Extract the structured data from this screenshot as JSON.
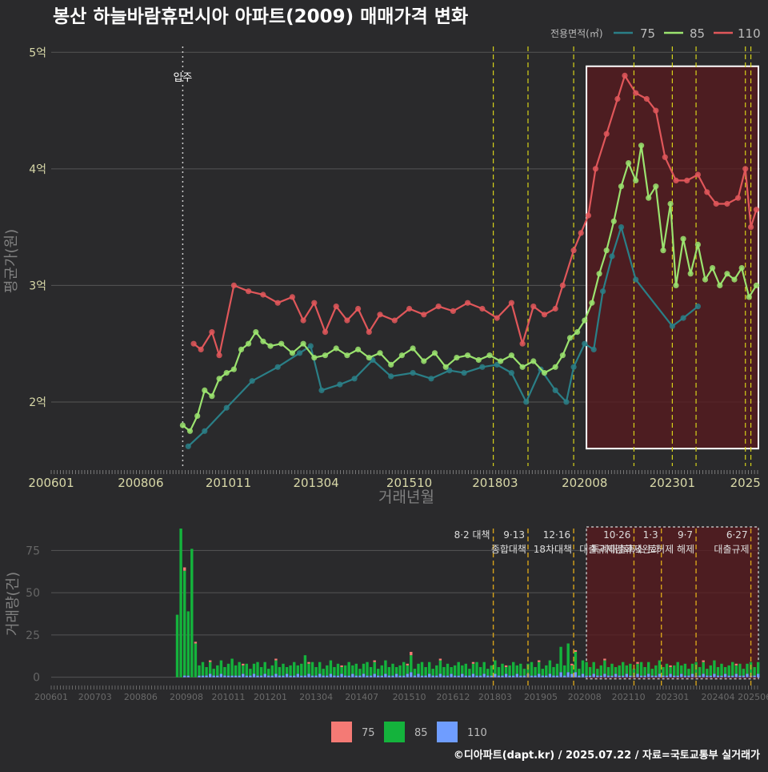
{
  "title": "봉산 하늘바람휴먼시아 아파트(2009) 매매가격 변화",
  "legend_top": {
    "label": "전용면적(㎡)",
    "items": [
      {
        "name": "75",
        "color": "#2a7f87"
      },
      {
        "name": "85",
        "color": "#9be36f"
      },
      {
        "name": "110",
        "color": "#e0575a"
      }
    ]
  },
  "legend_bottom": {
    "items": [
      {
        "name": "75",
        "color": "#f47a75"
      },
      {
        "name": "85",
        "color": "#14b33c"
      },
      {
        "name": "110",
        "color": "#6f9dff"
      }
    ]
  },
  "footer": "©디아파트(dapt.kr) / 2025.07.22 / 자료=국토교통부 실거래가",
  "chart_data": [
    {
      "type": "line",
      "title": "봉산 하늘바람휴먼시아 아파트(2009) 매매가격 변화",
      "xlabel": "거래년월",
      "ylabel": "평균가(원)",
      "ylim": [
        1.45,
        5.05
      ],
      "yticks": [
        {
          "v": 2,
          "label": "2억"
        },
        {
          "v": 3,
          "label": "3억"
        },
        {
          "v": 4,
          "label": "4억"
        },
        {
          "v": 5,
          "label": "5억"
        }
      ],
      "xlim": [
        2006.0,
        2025.4
      ],
      "xticks": [
        {
          "v": 2006.0,
          "label": "200601"
        },
        {
          "v": 2008.45,
          "label": "200806"
        },
        {
          "v": 2010.85,
          "label": "201011"
        },
        {
          "v": 2013.25,
          "label": "201304"
        },
        {
          "v": 2015.8,
          "label": "201510"
        },
        {
          "v": 2018.15,
          "label": "201803"
        },
        {
          "v": 2020.6,
          "label": "202008"
        },
        {
          "v": 2023.0,
          "label": "202301"
        },
        {
          "v": 2025.0,
          "label": "2025"
        }
      ],
      "annotation": {
        "x": 2009.6,
        "label": "입주"
      },
      "event_lines": [
        2018.1,
        2019.05,
        2020.3,
        2021.95,
        2023.0,
        2023.65,
        2025.0,
        2025.15
      ],
      "highlight": {
        "x_from": 2020.65,
        "x_to": 2025.4,
        "y_from": 1.6,
        "y_to": 4.88
      },
      "series": [
        {
          "name": "75",
          "points": [
            [
              2009.75,
              1.62
            ],
            [
              2010.2,
              1.75
            ],
            [
              2010.8,
              1.95
            ],
            [
              2011.5,
              2.18
            ],
            [
              2012.2,
              2.3
            ],
            [
              2012.8,
              2.42
            ],
            [
              2013.1,
              2.48
            ],
            [
              2013.4,
              2.1
            ],
            [
              2013.9,
              2.15
            ],
            [
              2014.3,
              2.2
            ],
            [
              2014.8,
              2.36
            ],
            [
              2015.3,
              2.22
            ],
            [
              2015.9,
              2.25
            ],
            [
              2016.4,
              2.2
            ],
            [
              2016.9,
              2.27
            ],
            [
              2017.3,
              2.25
            ],
            [
              2017.8,
              2.3
            ],
            [
              2018.2,
              2.32
            ],
            [
              2018.6,
              2.25
            ],
            [
              2019.0,
              2.0
            ],
            [
              2019.4,
              2.28
            ],
            [
              2019.8,
              2.1
            ],
            [
              2020.1,
              2.0
            ],
            [
              2020.3,
              2.3
            ],
            [
              2020.6,
              2.5
            ],
            [
              2020.85,
              2.45
            ],
            [
              2021.1,
              2.95
            ],
            [
              2021.35,
              3.25
            ],
            [
              2021.6,
              3.5
            ],
            [
              2022.0,
              3.05
            ],
            [
              2023.0,
              2.65
            ],
            [
              2023.3,
              2.72
            ],
            [
              2023.7,
              2.82
            ]
          ]
        },
        {
          "name": "85",
          "points": [
            [
              2009.6,
              1.8
            ],
            [
              2009.8,
              1.75
            ],
            [
              2010.0,
              1.88
            ],
            [
              2010.2,
              2.1
            ],
            [
              2010.4,
              2.05
            ],
            [
              2010.6,
              2.2
            ],
            [
              2010.8,
              2.25
            ],
            [
              2011.0,
              2.28
            ],
            [
              2011.2,
              2.45
            ],
            [
              2011.4,
              2.5
            ],
            [
              2011.6,
              2.6
            ],
            [
              2011.8,
              2.52
            ],
            [
              2012.0,
              2.48
            ],
            [
              2012.3,
              2.5
            ],
            [
              2012.6,
              2.42
            ],
            [
              2012.9,
              2.5
            ],
            [
              2013.2,
              2.38
            ],
            [
              2013.5,
              2.4
            ],
            [
              2013.8,
              2.46
            ],
            [
              2014.1,
              2.4
            ],
            [
              2014.4,
              2.45
            ],
            [
              2014.7,
              2.38
            ],
            [
              2015.0,
              2.42
            ],
            [
              2015.3,
              2.32
            ],
            [
              2015.6,
              2.4
            ],
            [
              2015.9,
              2.46
            ],
            [
              2016.2,
              2.35
            ],
            [
              2016.5,
              2.42
            ],
            [
              2016.8,
              2.3
            ],
            [
              2017.1,
              2.38
            ],
            [
              2017.4,
              2.4
            ],
            [
              2017.7,
              2.36
            ],
            [
              2018.0,
              2.4
            ],
            [
              2018.3,
              2.35
            ],
            [
              2018.6,
              2.4
            ],
            [
              2018.9,
              2.3
            ],
            [
              2019.2,
              2.35
            ],
            [
              2019.5,
              2.25
            ],
            [
              2019.8,
              2.3
            ],
            [
              2020.0,
              2.4
            ],
            [
              2020.2,
              2.55
            ],
            [
              2020.4,
              2.6
            ],
            [
              2020.6,
              2.7
            ],
            [
              2020.8,
              2.85
            ],
            [
              2021.0,
              3.1
            ],
            [
              2021.2,
              3.3
            ],
            [
              2021.4,
              3.55
            ],
            [
              2021.6,
              3.85
            ],
            [
              2021.8,
              4.05
            ],
            [
              2022.0,
              3.9
            ],
            [
              2022.15,
              4.2
            ],
            [
              2022.35,
              3.75
            ],
            [
              2022.55,
              3.85
            ],
            [
              2022.75,
              3.3
            ],
            [
              2022.95,
              3.7
            ],
            [
              2023.1,
              3.0
            ],
            [
              2023.3,
              3.4
            ],
            [
              2023.5,
              3.1
            ],
            [
              2023.7,
              3.35
            ],
            [
              2023.9,
              3.05
            ],
            [
              2024.1,
              3.15
            ],
            [
              2024.3,
              3.0
            ],
            [
              2024.5,
              3.1
            ],
            [
              2024.7,
              3.05
            ],
            [
              2024.9,
              3.15
            ],
            [
              2025.1,
              2.9
            ],
            [
              2025.3,
              3.0
            ]
          ]
        },
        {
          "name": "110",
          "points": [
            [
              2009.9,
              2.5
            ],
            [
              2010.1,
              2.45
            ],
            [
              2010.4,
              2.6
            ],
            [
              2010.6,
              2.4
            ],
            [
              2011.0,
              3.0
            ],
            [
              2011.4,
              2.95
            ],
            [
              2011.8,
              2.92
            ],
            [
              2012.2,
              2.85
            ],
            [
              2012.6,
              2.9
            ],
            [
              2012.9,
              2.7
            ],
            [
              2013.2,
              2.85
            ],
            [
              2013.5,
              2.6
            ],
            [
              2013.8,
              2.82
            ],
            [
              2014.1,
              2.7
            ],
            [
              2014.4,
              2.8
            ],
            [
              2014.7,
              2.6
            ],
            [
              2015.0,
              2.75
            ],
            [
              2015.4,
              2.7
            ],
            [
              2015.8,
              2.8
            ],
            [
              2016.2,
              2.75
            ],
            [
              2016.6,
              2.82
            ],
            [
              2017.0,
              2.78
            ],
            [
              2017.4,
              2.85
            ],
            [
              2017.8,
              2.8
            ],
            [
              2018.2,
              2.72
            ],
            [
              2018.6,
              2.85
            ],
            [
              2018.9,
              2.5
            ],
            [
              2019.2,
              2.82
            ],
            [
              2019.5,
              2.75
            ],
            [
              2019.8,
              2.8
            ],
            [
              2020.0,
              3.0
            ],
            [
              2020.3,
              3.3
            ],
            [
              2020.5,
              3.45
            ],
            [
              2020.7,
              3.6
            ],
            [
              2020.9,
              4.0
            ],
            [
              2021.2,
              4.3
            ],
            [
              2021.5,
              4.6
            ],
            [
              2021.7,
              4.8
            ],
            [
              2022.0,
              4.65
            ],
            [
              2022.3,
              4.6
            ],
            [
              2022.55,
              4.5
            ],
            [
              2022.8,
              4.1
            ],
            [
              2023.1,
              3.9
            ],
            [
              2023.4,
              3.9
            ],
            [
              2023.7,
              3.95
            ],
            [
              2023.95,
              3.8
            ],
            [
              2024.2,
              3.7
            ],
            [
              2024.5,
              3.7
            ],
            [
              2024.8,
              3.75
            ],
            [
              2025.0,
              4.0
            ],
            [
              2025.15,
              3.5
            ],
            [
              2025.3,
              3.65
            ]
          ]
        }
      ]
    },
    {
      "type": "bar",
      "ylabel": "거래량(건)",
      "ylim": [
        -3,
        88
      ],
      "yticks": [
        0,
        25,
        50,
        75
      ],
      "xlim": [
        2006.0,
        2025.4
      ],
      "xticks": [
        {
          "v": 2006.0,
          "label": "200601"
        },
        {
          "v": 2007.2,
          "label": "200703"
        },
        {
          "v": 2008.45,
          "label": "200806"
        },
        {
          "v": 2009.7,
          "label": "200908"
        },
        {
          "v": 2010.85,
          "label": "201011"
        },
        {
          "v": 2012.0,
          "label": "201201"
        },
        {
          "v": 2013.25,
          "label": "201304"
        },
        {
          "v": 2014.5,
          "label": "201407"
        },
        {
          "v": 2015.8,
          "label": "201510"
        },
        {
          "v": 2017.0,
          "label": "201612"
        },
        {
          "v": 2018.15,
          "label": "201803"
        },
        {
          "v": 2019.4,
          "label": "201905"
        },
        {
          "v": 2020.6,
          "label": "202008"
        },
        {
          "v": 2021.8,
          "label": "202110"
        },
        {
          "v": 2023.0,
          "label": "202301"
        },
        {
          "v": 2024.25,
          "label": "202404"
        },
        {
          "v": 2025.25,
          "label": "202506"
        }
      ],
      "events": [
        {
          "x": 2018.1,
          "label1": "8·2 대책",
          "label2": ""
        },
        {
          "x": 2019.05,
          "label1": "9·13",
          "label2": "종합대책"
        },
        {
          "x": 2020.3,
          "label1": "12·16",
          "label2": "18차대책"
        },
        {
          "x": 2021.95,
          "label1": "10·26",
          "label2": "대출규제강화"
        },
        {
          "x": 2022.7,
          "label1": "1·3",
          "label2": "규제완화"
        },
        {
          "x": 2023.65,
          "label1": "9·7",
          "label2": "특례대출축소 토허제 해제"
        },
        {
          "x": 2025.15,
          "label1": "6·27",
          "label2": "대출규제"
        }
      ],
      "highlight": {
        "x_from": 2020.65,
        "x_to": 2025.4
      },
      "samples": [
        {
          "x": 2009.45,
          "v85": 37,
          "v75": 0,
          "v110": 0
        },
        {
          "x": 2009.55,
          "v85": 88,
          "v75": 0,
          "v110": 0
        },
        {
          "x": 2009.65,
          "v85": 62,
          "v75": 2,
          "v110": 1
        },
        {
          "x": 2009.75,
          "v85": 38,
          "v75": 0,
          "v110": 1
        },
        {
          "x": 2009.85,
          "v85": 76,
          "v75": 0,
          "v110": 0
        },
        {
          "x": 2009.95,
          "v85": 20,
          "v75": 1,
          "v110": 0
        },
        {
          "x": 2010.05,
          "v85": 6,
          "v75": 0,
          "v110": 1
        },
        {
          "x": 2010.95,
          "v85": 10,
          "v75": 0,
          "v110": 1
        },
        {
          "x": 2012.95,
          "v85": 12,
          "v75": 0,
          "v110": 1
        },
        {
          "x": 2015.85,
          "v85": 10,
          "v75": 2,
          "v110": 3
        },
        {
          "x": 2019.95,
          "v85": 15,
          "v75": 0,
          "v110": 3
        },
        {
          "x": 2020.15,
          "v85": 17,
          "v75": 0,
          "v110": 3
        },
        {
          "x": 2020.35,
          "v85": 12,
          "v75": 1,
          "v110": 3
        },
        {
          "x": 2020.55,
          "v85": 8,
          "v75": 0,
          "v110": 2
        }
      ],
      "baseline": {
        "v85": 4,
        "v75": 0,
        "v110": 1
      }
    }
  ]
}
